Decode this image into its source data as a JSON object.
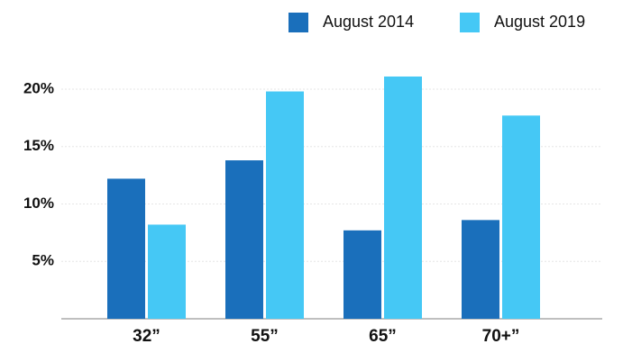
{
  "chart_data": {
    "type": "bar",
    "categories": [
      "32”",
      "55”",
      "65”",
      "70+”"
    ],
    "series": [
      {
        "name": "August 2014",
        "color": "#1a6fbb",
        "values": [
          12.2,
          13.8,
          7.7,
          8.6
        ]
      },
      {
        "name": "August 2019",
        "color": "#45c8f5",
        "values": [
          8.2,
          19.8,
          21.1,
          17.7
        ]
      }
    ],
    "ylim": [
      0,
      22
    ],
    "yticks": [
      {
        "value": 5,
        "label": "5%"
      },
      {
        "value": 10,
        "label": "10%"
      },
      {
        "value": 15,
        "label": "15%"
      },
      {
        "value": 20,
        "label": "20%"
      }
    ],
    "grid": true,
    "legend": "top-right"
  }
}
